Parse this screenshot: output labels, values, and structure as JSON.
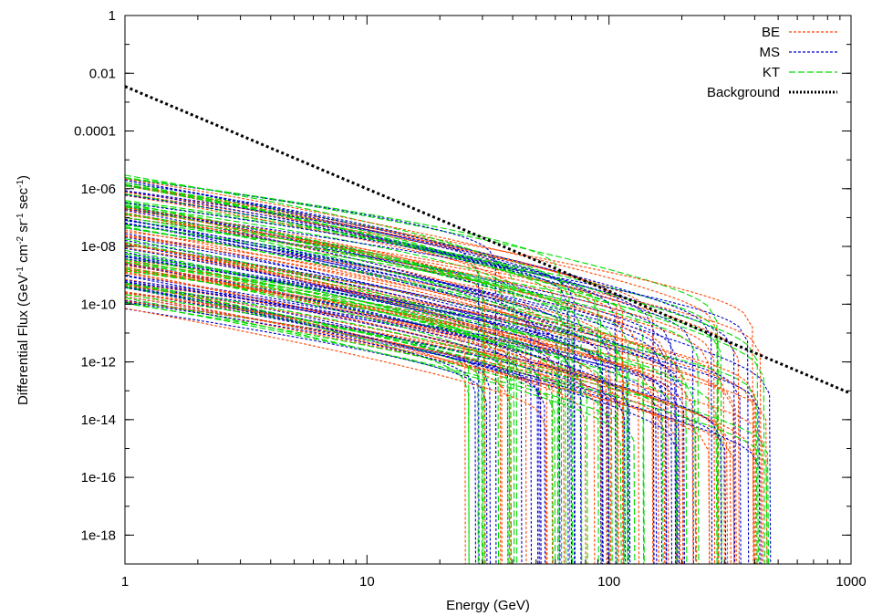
{
  "chart_data": {
    "type": "line",
    "xlabel": "Energy (GeV)",
    "ylabel_parts": [
      "Differential Flux (GeV",
      "-1",
      " cm",
      "-2",
      " sr",
      "-1",
      " sec",
      "-1",
      ")"
    ],
    "x_scale": "log",
    "y_scale": "log",
    "xlim": [
      1,
      1000
    ],
    "ylim": [
      1e-19,
      1
    ],
    "x_ticks": [
      {
        "value": 1,
        "label": "1"
      },
      {
        "value": 10,
        "label": "10"
      },
      {
        "value": 100,
        "label": "100"
      },
      {
        "value": 1000,
        "label": "1000"
      }
    ],
    "y_ticks": [
      {
        "value": 1,
        "label": "1"
      },
      {
        "value": 0.01,
        "label": "0.01"
      },
      {
        "value": 0.0001,
        "label": "0.0001"
      },
      {
        "value": 1e-06,
        "label": "1e-06"
      },
      {
        "value": 1e-08,
        "label": "1e-08"
      },
      {
        "value": 1e-10,
        "label": "1e-10"
      },
      {
        "value": 1e-12,
        "label": "1e-12"
      },
      {
        "value": 1e-14,
        "label": "1e-14"
      },
      {
        "value": 1e-16,
        "label": "1e-16"
      },
      {
        "value": 1e-18,
        "label": "1e-18"
      }
    ],
    "grid": false,
    "legend_position": "top-right",
    "series": [
      {
        "name": "BE",
        "color": "#ff4500",
        "style": "dashed",
        "shape": "curved spectra with cutoffs, approx. 1e-9 to 3e-6 at 1 GeV, cutoff 25-480 GeV"
      },
      {
        "name": "MS",
        "color": "#0000cc",
        "style": "dashed",
        "shape": "curved spectra with cutoffs, approx. 7e-11 to 1e-6 at 1 GeV, cutoff 25-480 GeV"
      },
      {
        "name": "KT",
        "color": "#00dd00",
        "style": "long-dashed",
        "shape": "curved spectra with cutoffs, approx. 3e-10 to 2e-6 at 1 GeV, cutoff 25-480 GeV"
      },
      {
        "name": "Background",
        "color": "#000000",
        "style": "dotted",
        "x": [
          1,
          1000
        ],
        "y": [
          0.0035,
          8e-14
        ]
      }
    ]
  }
}
